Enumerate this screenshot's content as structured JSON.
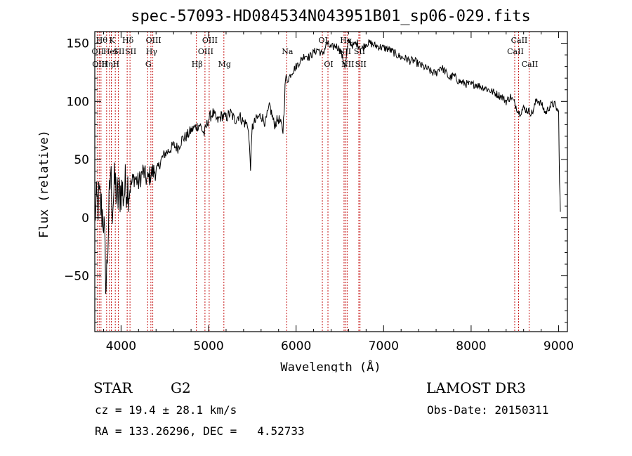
{
  "chart_data": {
    "type": "line",
    "title": "spec-57093-HD084534N043951B01_sp06-029.fits",
    "xlabel": "Wavelength (Å)",
    "ylabel": "Flux (relative)",
    "xlim": [
      3700,
      9100
    ],
    "ylim": [
      -98,
      160
    ],
    "xticks": [
      4000,
      5000,
      6000,
      7000,
      8000,
      9000
    ],
    "yticks": [
      -50,
      0,
      50,
      100,
      150
    ],
    "grid": false,
    "legend": "none",
    "series": [
      {
        "name": "spectrum",
        "x": [
          3700,
          3750,
          3800,
          3830,
          3850,
          3880,
          3900,
          3930,
          3960,
          4000,
          4030,
          4060,
          4100,
          4150,
          4200,
          4250,
          4300,
          4340,
          4380,
          4420,
          4460,
          4500,
          4550,
          4600,
          4650,
          4700,
          4750,
          4800,
          4850,
          4900,
          4950,
          5000,
          5050,
          5100,
          5150,
          5200,
          5250,
          5300,
          5350,
          5400,
          5450,
          5480,
          5500,
          5550,
          5600,
          5650,
          5700,
          5750,
          5800,
          5850,
          5880,
          5900,
          5950,
          6000,
          6050,
          6100,
          6150,
          6200,
          6250,
          6300,
          6350,
          6400,
          6450,
          6500,
          6560,
          6600,
          6650,
          6700,
          6750,
          6800,
          6850,
          6900,
          6950,
          7000,
          7050,
          7100,
          7150,
          7200,
          7250,
          7300,
          7350,
          7400,
          7450,
          7500,
          7550,
          7600,
          7650,
          7700,
          7750,
          7800,
          7850,
          7900,
          7950,
          8000,
          8050,
          8100,
          8150,
          8200,
          8250,
          8300,
          8350,
          8400,
          8450,
          8500,
          8550,
          8600,
          8650,
          8700,
          8750,
          8800,
          8850,
          8900,
          8950,
          9000,
          9010,
          9020
        ],
        "y": [
          5,
          15,
          0,
          -60,
          -20,
          40,
          10,
          30,
          15,
          25,
          20,
          30,
          25,
          35,
          30,
          40,
          32,
          38,
          40,
          42,
          50,
          55,
          58,
          62,
          60,
          68,
          70,
          75,
          78,
          80,
          72,
          85,
          90,
          83,
          88,
          86,
          90,
          84,
          88,
          82,
          80,
          45,
          78,
          85,
          88,
          82,
          96,
          80,
          85,
          75,
          120,
          118,
          125,
          130,
          135,
          140,
          138,
          142,
          145,
          140,
          150,
          146,
          148,
          145,
          130,
          152,
          148,
          150,
          145,
          150,
          150,
          148,
          147,
          146,
          145,
          143,
          140,
          138,
          137,
          135,
          135,
          132,
          130,
          128,
          125,
          124,
          130,
          126,
          120,
          122,
          118,
          116,
          115,
          114,
          115,
          113,
          112,
          110,
          108,
          106,
          104,
          100,
          104,
          98,
          90,
          94,
          92,
          90,
          102,
          98,
          90,
          96,
          98,
          90,
          30,
          5
        ]
      }
    ],
    "line_markers": [
      {
        "x": 3727,
        "label": "OII",
        "row": 1
      },
      {
        "x": 3750,
        "label": "OIII",
        "row": 2
      },
      {
        "x": 3771,
        "label": "Hθ",
        "row": 0
      },
      {
        "x": 3835,
        "label": "Hη",
        "row": 2
      },
      {
        "x": 3869,
        "label": "HeI",
        "row": 1
      },
      {
        "x": 3889,
        "label": "K",
        "row": 0
      },
      {
        "x": 3934,
        "label": "H",
        "row": 2
      },
      {
        "x": 3968,
        "label": "SII",
        "row": 1
      },
      {
        "x": 4070,
        "label": "Hδ",
        "row": 0
      },
      {
        "x": 4102,
        "label": "SII",
        "row": 1
      },
      {
        "x": 4304,
        "label": "G",
        "row": 2
      },
      {
        "x": 4341,
        "label": "Hγ",
        "row": 1
      },
      {
        "x": 4363,
        "label": "OIII",
        "row": 0
      },
      {
        "x": 4861,
        "label": "Hβ",
        "row": 2
      },
      {
        "x": 4959,
        "label": "OIII",
        "row": 1
      },
      {
        "x": 5007,
        "label": "OIII",
        "row": 0
      },
      {
        "x": 5175,
        "label": "Mg",
        "row": 2
      },
      {
        "x": 5893,
        "label": "Na",
        "row": 1
      },
      {
        "x": 6300,
        "label": "OI",
        "row": 0
      },
      {
        "x": 6364,
        "label": "OI",
        "row": 2
      },
      {
        "x": 6548,
        "label": "NII",
        "row": 1
      },
      {
        "x": 6563,
        "label": "Hα",
        "row": 0
      },
      {
        "x": 6583,
        "label": "NII",
        "row": 2
      },
      {
        "x": 6717,
        "label": "SII",
        "row": 1
      },
      {
        "x": 6731,
        "label": "SII",
        "row": 2
      },
      {
        "x": 8498,
        "label": "CaII",
        "row": 1
      },
      {
        "x": 8542,
        "label": "CaII",
        "row": 0
      },
      {
        "x": 8662,
        "label": "CaII",
        "row": 2
      }
    ]
  },
  "info": {
    "object_class": "STAR",
    "subclass": "G2",
    "survey": "LAMOST DR3",
    "cz": "cz = 19.4 ± 28.1 km/s",
    "obs_date": "Obs-Date: 20150311",
    "coords": "RA = 133.26296, DEC =   4.52733"
  }
}
